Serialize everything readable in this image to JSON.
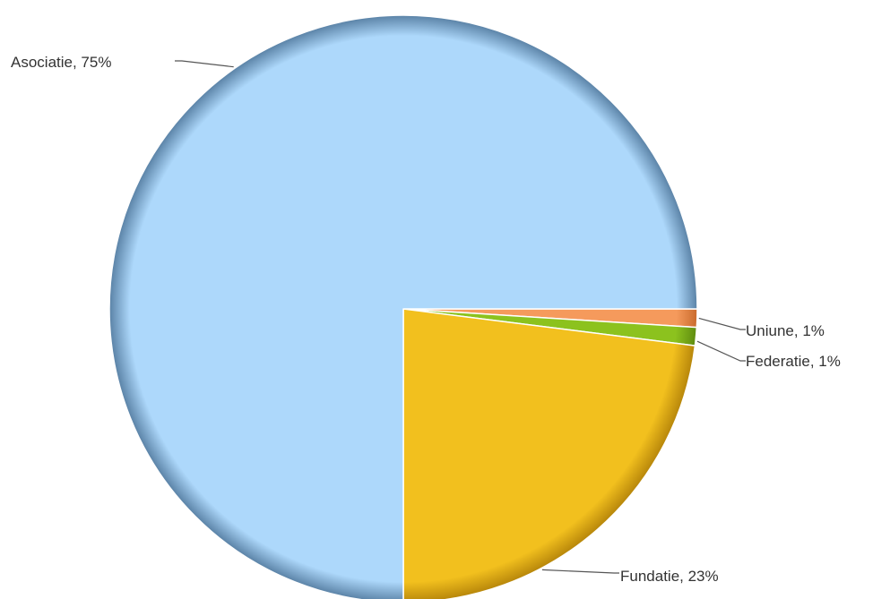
{
  "chart_data": {
    "type": "pie",
    "title": "",
    "start_angle": 0,
    "direction": "counterclockwise",
    "slices": [
      {
        "name": "Asociatie",
        "value": 75,
        "label": "Asociatie, 75%",
        "color": "#add8fb",
        "edge_color": "#5a82a6"
      },
      {
        "name": "Fundatie",
        "value": 23,
        "label": "Fundatie, 23%",
        "color": "#f2c01e",
        "edge_color": "#b7860a"
      },
      {
        "name": "Federatie",
        "value": 1,
        "label": "Federatie, 1%",
        "color": "#8cc21e",
        "edge_color": "#5f8c10"
      },
      {
        "name": "Uniune",
        "value": 1,
        "label": "Uniune, 1%",
        "color": "#f59a5c",
        "edge_color": "#c96a2c"
      }
    ]
  }
}
